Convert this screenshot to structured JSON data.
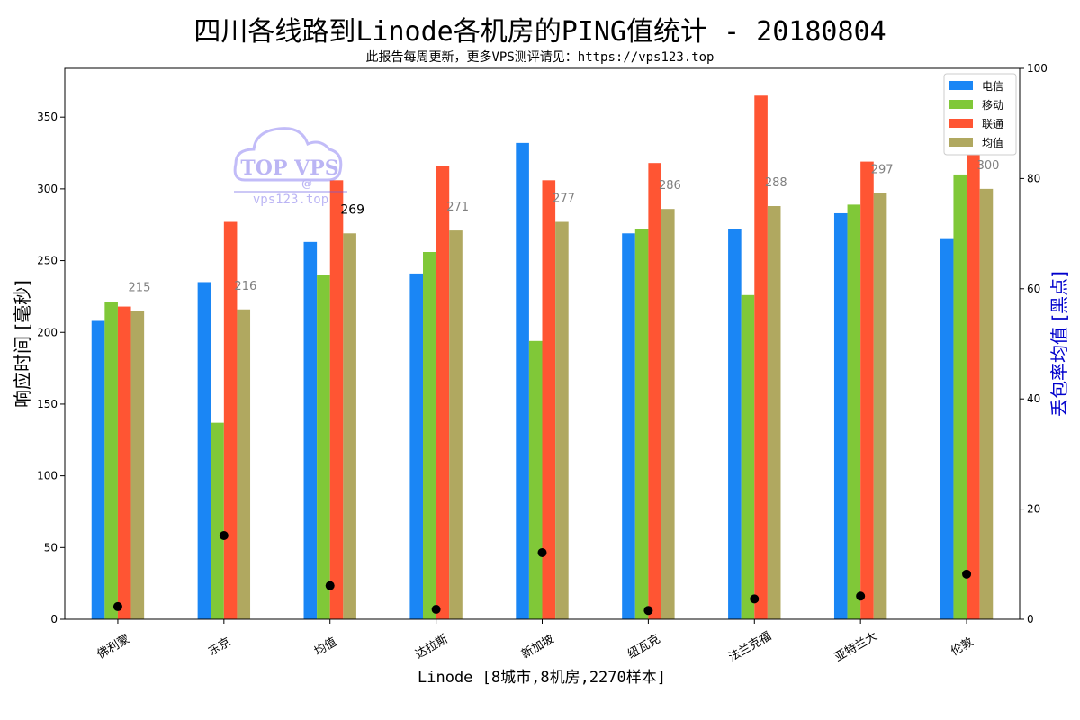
{
  "title": "四川各线路到Linode各机房的PING值统计 - 20180804",
  "subtitle": "此报告每周更新，更多VPS测评请见：https://vps123.top",
  "watermark": {
    "brand": "TOP VPS",
    "at": "@",
    "site": "vps123.top"
  },
  "chart_data": {
    "type": "bar",
    "categories": [
      "佛利蒙",
      "东京",
      "均值",
      "达拉斯",
      "新加坡",
      "纽瓦克",
      "法兰克福",
      "亚特兰大",
      "伦敦"
    ],
    "series": [
      {
        "name": "电信",
        "color": "#1a86f5",
        "values": [
          208,
          235,
          263,
          241,
          332,
          269,
          272,
          283,
          265
        ]
      },
      {
        "name": "移动",
        "color": "#80c838",
        "values": [
          221,
          137,
          240,
          256,
          194,
          272,
          226,
          289,
          310
        ]
      },
      {
        "name": "联通",
        "color": "#ff5533",
        "values": [
          218,
          277,
          306,
          316,
          306,
          318,
          365,
          319,
          330
        ]
      },
      {
        "name": "均值",
        "color": "#b0a860",
        "values": [
          215,
          216,
          269,
          271,
          277,
          286,
          288,
          297,
          300
        ]
      }
    ],
    "avg_labels": [
      "215",
      "216",
      "269",
      "271",
      "277",
      "286",
      "288",
      "297",
      "300"
    ],
    "highlight_category": "均值",
    "packet_loss": {
      "name": "丢包率均值",
      "color": "#000000",
      "values": [
        2.3,
        15.2,
        6.1,
        1.8,
        12.1,
        1.6,
        3.7,
        4.2,
        8.2
      ]
    },
    "xlabel": "Linode [8城市,8机房,2270样本]",
    "ylabel": "响应时间 [毫秒]",
    "y2label": "丢包率均值 [黑点]",
    "ylim": [
      0,
      384
    ],
    "yticks": [
      0,
      50,
      100,
      150,
      200,
      250,
      300,
      350
    ],
    "y2lim": [
      0,
      100
    ],
    "y2ticks": [
      0,
      20,
      40,
      60,
      80,
      100
    ],
    "legend_position": "upper-right",
    "grid": false
  }
}
